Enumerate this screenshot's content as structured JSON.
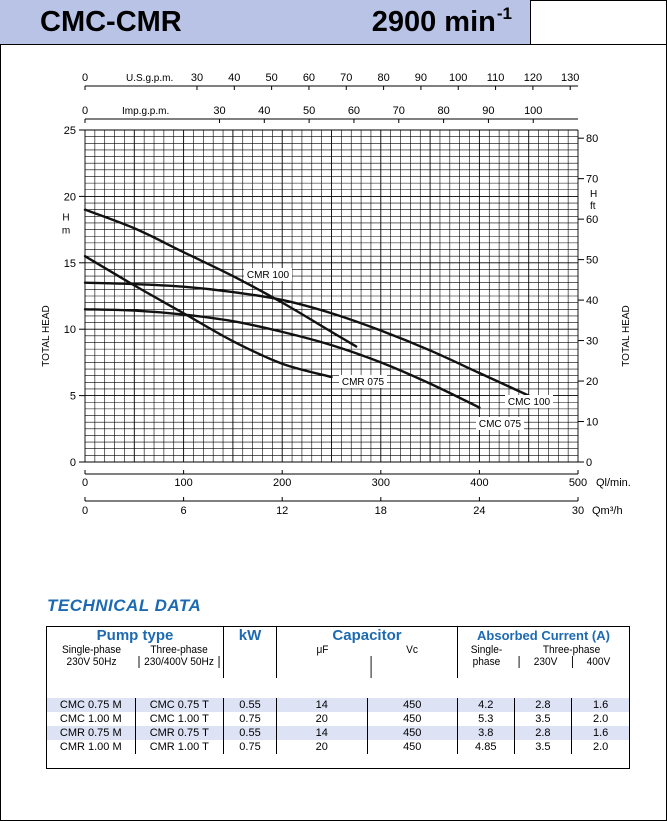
{
  "header": {
    "model": "CMC-CMR",
    "speed_value": "2900 min",
    "speed_exp": "-1"
  },
  "chart_data": {
    "type": "line",
    "x_axis_primary": {
      "label": "Ql/min.",
      "ticks": [
        0,
        100,
        200,
        300,
        400,
        500
      ],
      "range": [
        0,
        500
      ]
    },
    "x_axis_m3h": {
      "label": "Qm³/h",
      "ticks": [
        0,
        6,
        12,
        18,
        24,
        30
      ]
    },
    "x_axis_usgpm": {
      "label": "U.S.g.p.m.",
      "ticks": [
        0,
        30,
        40,
        50,
        60,
        70,
        80,
        90,
        100,
        110,
        120,
        130
      ]
    },
    "x_axis_impgpm": {
      "label": "Imp.g.p.m.",
      "ticks": [
        0,
        30,
        40,
        50,
        60,
        70,
        80,
        90,
        100
      ]
    },
    "y_axis_left": {
      "label": "TOTAL HEAD",
      "unit": "H m",
      "ticks": [
        0,
        5,
        10,
        15,
        20,
        25
      ],
      "range": [
        0,
        25
      ]
    },
    "y_axis_right": {
      "label": "TOTAL HEAD",
      "unit": "H ft",
      "ticks": [
        0,
        10,
        20,
        30,
        40,
        50,
        60,
        70,
        80
      ]
    },
    "series": [
      {
        "name": "CMC 100",
        "x": [
          0,
          50,
          100,
          150,
          200,
          250,
          300,
          350,
          400,
          450
        ],
        "y": [
          13.5,
          13.4,
          13.2,
          12.8,
          12.2,
          11.2,
          9.9,
          8.4,
          6.7,
          5.0
        ]
      },
      {
        "name": "CMC 075",
        "x": [
          0,
          50,
          100,
          150,
          200,
          250,
          300,
          350,
          400
        ],
        "y": [
          11.5,
          11.4,
          11.1,
          10.6,
          9.8,
          8.8,
          7.5,
          5.9,
          4.1
        ]
      },
      {
        "name": "CMR 100",
        "x": [
          0,
          50,
          100,
          150,
          200,
          250,
          275
        ],
        "y": [
          19.0,
          17.6,
          15.8,
          14.0,
          12.0,
          9.8,
          8.7
        ]
      },
      {
        "name": "CMR 075",
        "x": [
          0,
          50,
          100,
          150,
          200,
          250
        ],
        "y": [
          15.5,
          13.3,
          11.2,
          9.1,
          7.4,
          6.4
        ]
      }
    ],
    "curve_labels": [
      "CMR 100",
      "CMR 075",
      "CMC 100",
      "CMC 075"
    ]
  },
  "tech": {
    "title": "TECHNICAL DATA",
    "pump_type": "Pump type",
    "single_phase": "Single-phase",
    "single_spec": "230V 50Hz",
    "three_phase": "Three-phase",
    "three_spec": "230/400V 50Hz",
    "kw": "kW",
    "capacitor": "Capacitor",
    "uf": "μF",
    "vc": "Vc",
    "absorbed": "Absorbed Current (A)",
    "single_line1": "Single-",
    "single_line2": "phase",
    "three_phase_short": "Three-phase",
    "v230": "230V",
    "v400": "400V",
    "rows": [
      [
        "CMC 0.75 M",
        "CMC 0.75 T",
        "0.55",
        "14",
        "450",
        "4.2",
        "2.8",
        "1.6"
      ],
      [
        "CMC 1.00 M",
        "CMC 1.00 T",
        "0.75",
        "20",
        "450",
        "5.3",
        "3.5",
        "2.0"
      ],
      [
        "CMR 0.75 M",
        "CMR 0.75 T",
        "0.55",
        "14",
        "450",
        "3.8",
        "2.8",
        "1.6"
      ],
      [
        "CMR 1.00 M",
        "CMR 1.00 T",
        "0.75",
        "20",
        "450",
        "4.85",
        "3.5",
        "2.0"
      ]
    ]
  }
}
